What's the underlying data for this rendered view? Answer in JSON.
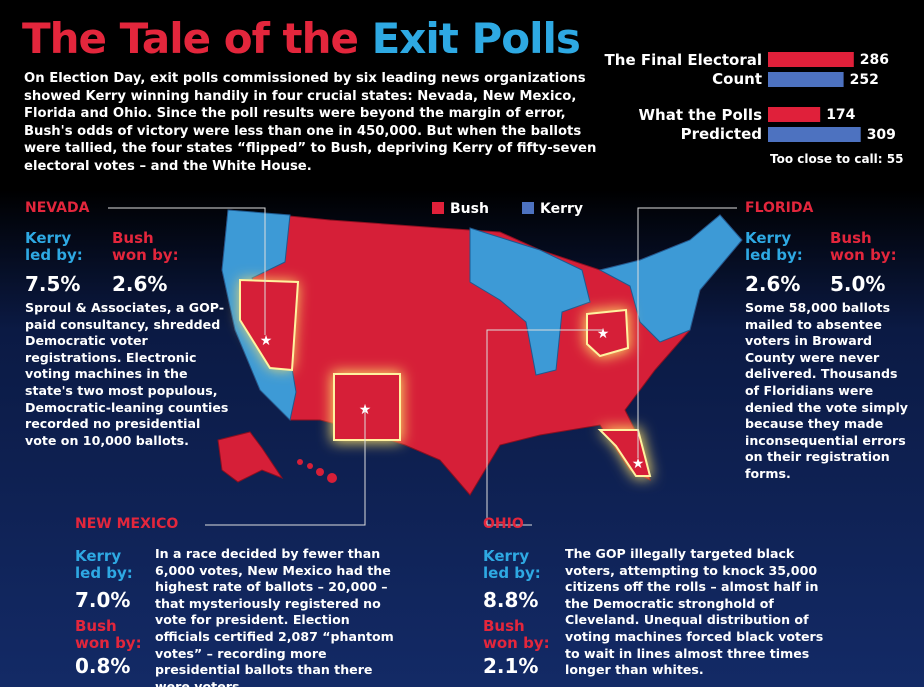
{
  "title": {
    "part1": "The Tale of the",
    "part2": "Exit Polls"
  },
  "intro": "On Election Day, exit polls commissioned by six leading news organizations showed Kerry winning handily in four crucial states: Nevada, New Mexico, Florida and Ohio. Since the poll results were beyond the margin of error, Bush's odds of victory were less than one in 450,000. But when the ballots were tallied, the four states “flipped” to Bush, depriving Kerry of fifty-seven electoral votes – and the White House.",
  "chart_data": {
    "type": "bar",
    "orientation": "horizontal",
    "categories": [
      "The Final Electoral Count",
      "What the Polls Predicted"
    ],
    "series": [
      {
        "name": "Bush",
        "color": "#e0203a",
        "values": [
          286,
          174
        ]
      },
      {
        "name": "Kerry",
        "color": "#4d72c0",
        "values": [
          252,
          309
        ]
      }
    ],
    "annotation": "Too close to call: 55"
  },
  "states": [
    {
      "name": "NEVADA",
      "kerry_label": "Kerry led by:",
      "kerry_value": "7.5%",
      "bush_label": "Bush won by:",
      "bush_value": "2.6%",
      "text": "Sproul & Associates, a GOP-paid consultancy, shredded Democratic voter registrations. Electronic voting machines in the state's two most populous, Democratic-leaning counties recorded no presidential vote on 10,000 ballots."
    },
    {
      "name": "FLORIDA",
      "kerry_label": "Kerry led by:",
      "kerry_value": "2.6%",
      "bush_label": "Bush won by:",
      "bush_value": "5.0%",
      "text": "Some 58,000 ballots mailed to absentee voters in Broward County were never delivered. Thousands of Floridians were denied the vote simply because they made inconsequential errors on their registration forms."
    },
    {
      "name": "NEW MEXICO",
      "kerry_label": "Kerry led by:",
      "kerry_value": "7.0%",
      "bush_label": "Bush won by:",
      "bush_value": "0.8%",
      "text": "In a race decided by fewer than 6,000 votes, New Mexico had the highest rate of ballots – 20,000 – that mysteriously registered no vote for president. Election officials certified 2,087 “phantom votes” – recording more presidential ballots than there were voters."
    },
    {
      "name": "OHIO",
      "kerry_label": "Kerry led by:",
      "kerry_value": "8.8%",
      "bush_label": "Bush won by:",
      "bush_value": "2.1%",
      "text": "The GOP illegally targeted black voters, attempting to knock 35,000 citizens off the rolls – almost half in the Democratic stronghold of Cleveland. Unequal distribution of voting machines forced black voters to wait in lines almost three times longer than whites."
    }
  ]
}
